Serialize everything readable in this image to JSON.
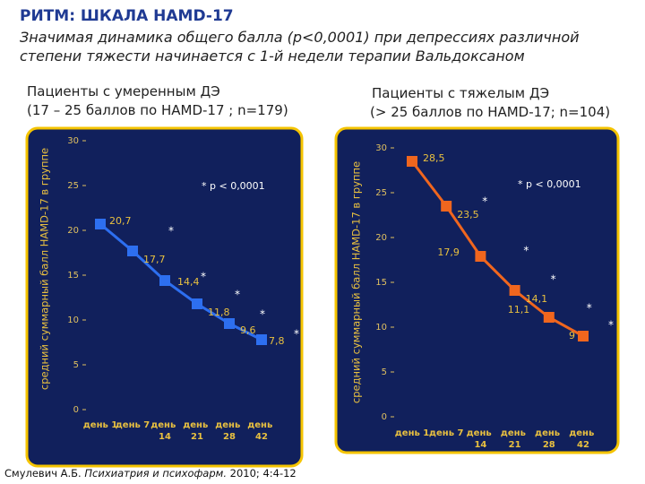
{
  "header": {
    "title": "РИТМ: ШКАЛА HAMD-17",
    "subtitle": [
      "Значимая динамика общего балла (p<0,0001) при депрессиях различной",
      "степени тяжести начинается с 1-й недели терапии Вальдоксаном"
    ]
  },
  "chart_data": [
    {
      "type": "line",
      "title": [
        "Пациенты с умеренным ДЭ",
        "(17 – 25 баллов по HAMD-17 ; n=179)"
      ],
      "y_label": "средний суммарный балл HAMD-17 в группе",
      "annotation": "* p < 0,0001",
      "significance_mark": "*",
      "categories": [
        "день 1",
        "день 7",
        "день 14",
        "день 21",
        "день 28",
        "день 42"
      ],
      "values": [
        20.7,
        17.7,
        14.4,
        11.8,
        9.6,
        7.8
      ],
      "value_labels": [
        "20,7",
        "17,7",
        "14,4",
        "11,8",
        "9,6",
        "7,8"
      ],
      "color": "#2d6ff0",
      "ylim": [
        0,
        30
      ],
      "yticks": [
        0,
        5,
        10,
        15,
        20,
        25,
        30
      ]
    },
    {
      "type": "line",
      "title": [
        "Пациенты с тяжелым ДЭ",
        "(> 25 баллов по HAMD-17; n=104)"
      ],
      "y_label": "средний суммарный балл HAMD-17 в группе",
      "annotation": "* p < 0,0001",
      "significance_mark": "*",
      "categories": [
        "день 1",
        "день 7",
        "день 14",
        "день 21",
        "день 28",
        "день 42"
      ],
      "values": [
        28.5,
        23.5,
        17.9,
        14.1,
        11.1,
        9
      ],
      "value_labels": [
        "28,5",
        "23,5",
        "17,9",
        "14,1",
        "11,1",
        "9"
      ],
      "color": "#f0661e",
      "ylim": [
        0,
        30
      ],
      "yticks": [
        0,
        5,
        10,
        15,
        20,
        25,
        30
      ]
    }
  ],
  "citation": {
    "author": "Смулевич А.Б.",
    "journal": "Психиатрия и психофарм.",
    "details": "2010; 4:4-12"
  }
}
